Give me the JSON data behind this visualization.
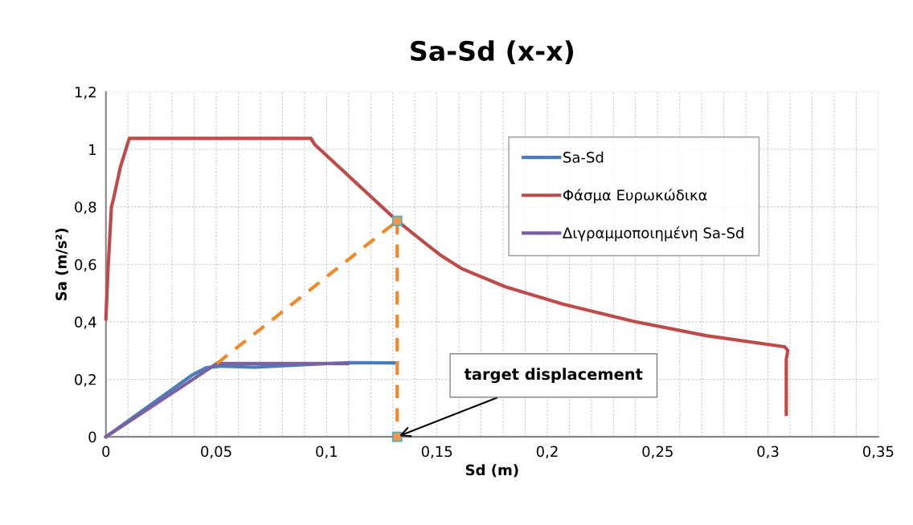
{
  "chart_data": {
    "type": "line",
    "title": "Sa-Sd (x-x)",
    "xlabel": "Sd (m)",
    "ylabel": "Sa (m/s²)",
    "xlim": [
      0,
      0.35
    ],
    "ylim": [
      0,
      1.2
    ],
    "xticks": [
      0,
      {
        "value": 0.01,
        "label": null
      },
      {
        "value": 0.02,
        "label": null
      },
      {
        "value": 0.03,
        "label": null
      },
      {
        "value": 0.04,
        "label": null
      },
      {
        "value": 0.05,
        "label": "0,05"
      },
      {
        "value": 0.06,
        "label": null
      },
      {
        "value": 0.07,
        "label": null
      },
      {
        "value": 0.08,
        "label": null
      },
      {
        "value": 0.09,
        "label": null
      },
      {
        "value": 0.1,
        "label": "0,1"
      },
      {
        "value": 0.11,
        "label": null
      },
      {
        "value": 0.12,
        "label": null
      },
      {
        "value": 0.13,
        "label": null
      },
      {
        "value": 0.14,
        "label": null
      },
      {
        "value": 0.15,
        "label": "0,15"
      },
      {
        "value": 0.16,
        "label": null
      },
      {
        "value": 0.17,
        "label": null
      },
      {
        "value": 0.18,
        "label": null
      },
      {
        "value": 0.19,
        "label": null
      },
      {
        "value": 0.2,
        "label": "0,2"
      },
      {
        "value": 0.21,
        "label": null
      },
      {
        "value": 0.22,
        "label": null
      },
      {
        "value": 0.23,
        "label": null
      },
      {
        "value": 0.24,
        "label": null
      },
      {
        "value": 0.25,
        "label": "0,25"
      },
      {
        "value": 0.26,
        "label": null
      },
      {
        "value": 0.27,
        "label": null
      },
      {
        "value": 0.28,
        "label": null
      },
      {
        "value": 0.29,
        "label": null
      },
      {
        "value": 0.3,
        "label": "0,3"
      },
      {
        "value": 0.31,
        "label": null
      },
      {
        "value": 0.32,
        "label": null
      },
      {
        "value": 0.33,
        "label": null
      },
      {
        "value": 0.34,
        "label": null
      },
      {
        "value": 0.35,
        "label": "0,35"
      }
    ],
    "yticks": [
      0,
      {
        "value": 0.2,
        "label": "0,2"
      },
      {
        "value": 0.4,
        "label": "0,4"
      },
      {
        "value": 0.6,
        "label": "0,6"
      },
      {
        "value": 0.8,
        "label": "0,8"
      },
      1,
      {
        "value": 1.2,
        "label": "1,2"
      }
    ],
    "grid": true,
    "legend": "top right",
    "marker": "none",
    "line_style": "solid",
    "series": [
      {
        "name": "Sa-Sd",
        "color": "#4a7ebb",
        "x": [
          0,
          0.0393,
          0.0454,
          0.0527,
          0.0673,
          0.1097,
          0.132
        ],
        "values": [
          0,
          0.216,
          0.24,
          0.246,
          0.242,
          0.258,
          0.257
        ]
      },
      {
        "name": "Φάσμα Ευρωκώδικα",
        "color": "#be4b48",
        "x": [
          0,
          0.001,
          0.0025,
          0.0035,
          0.0066,
          0.0106,
          0.0929,
          0.0947,
          0.132,
          0.145,
          0.152,
          0.161,
          0.181,
          0.207,
          0.239,
          0.272,
          0.3076,
          0.309,
          0.3083,
          0.3083
        ],
        "values": [
          0.41,
          0.59,
          0.8,
          0.83,
          0.94,
          1.038,
          1.038,
          1.016,
          0.751,
          0.672,
          0.63,
          0.586,
          0.522,
          0.462,
          0.402,
          0.352,
          0.313,
          0.3,
          0.27,
          0.078
        ]
      },
      {
        "name": "Διγραμμοποιημένη Sa-Sd",
        "color": "#7d60a0",
        "x": [
          0,
          0.0503,
          0.1097
        ],
        "values": [
          0,
          0.255,
          0.255
        ]
      },
      {
        "color": "#f0892a",
        "x": [
          0.0503,
          0.132
        ],
        "values": [
          0.255,
          0.751
        ],
        "line_style": "dashed"
      },
      {
        "color": "#f0892a",
        "x": [
          0.132,
          0.132
        ],
        "values": [
          0.751,
          0
        ],
        "line_style": "dashed",
        "marker": "square"
      }
    ],
    "annotations": [
      {
        "text": "target displacement",
        "x": 0.132,
        "y": 0
      }
    ]
  }
}
